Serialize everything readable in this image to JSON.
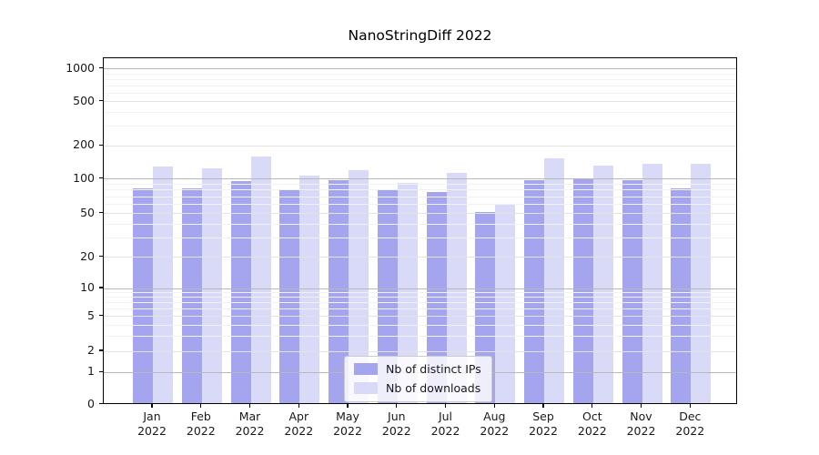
{
  "figure": {
    "background": "#ffffff"
  },
  "chart_data": {
    "type": "bar",
    "title": "NanoStringDiff 2022",
    "categories": [
      "Jan",
      "Feb",
      "Mar",
      "Apr",
      "May",
      "Jun",
      "Jul",
      "Aug",
      "Sep",
      "Oct",
      "Nov",
      "Dec"
    ],
    "category_year": "2022",
    "series": [
      {
        "name": "Nb of distinct IPs",
        "color": "#a4a4ef",
        "values": [
          80,
          80,
          92,
          77,
          95,
          79,
          74,
          50,
          95,
          97,
          95,
          80
        ]
      },
      {
        "name": "Nb of downloads",
        "color": "#d9d9f8",
        "values": [
          125,
          120,
          153,
          103,
          116,
          89,
          109,
          58,
          148,
          127,
          132,
          132
        ]
      }
    ],
    "xlabel": "",
    "ylabel": "",
    "y_ticks": [
      0,
      1,
      2,
      5,
      10,
      20,
      50,
      100,
      200,
      500,
      1000
    ],
    "y_minor_ticks": [
      3,
      4,
      6,
      7,
      8,
      9,
      30,
      40,
      60,
      70,
      80,
      90,
      300,
      400,
      600,
      700,
      800,
      900
    ],
    "ylim": [
      0,
      1260
    ],
    "scale": "symlog (log above 1, linear 0-1)",
    "grid": true,
    "legend_position": "lower center",
    "colors": {
      "grid_power_of_ten": "#b8b8b8",
      "grid_labeled": "#e3e3e3",
      "grid_minor": "#f2f2f2",
      "axis": "#000000",
      "text": "#191919"
    }
  }
}
